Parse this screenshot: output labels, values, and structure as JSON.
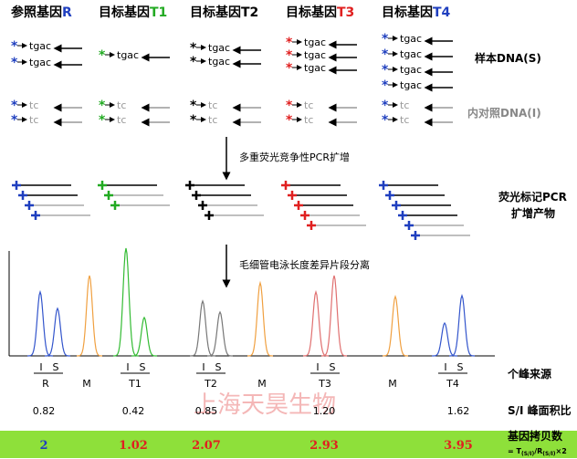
{
  "headers": [
    {
      "label": "参照基因",
      "gene": "R"
    },
    {
      "label": "目标基因",
      "gene": "T1"
    },
    {
      "label": "目标基因",
      "gene": "T2"
    },
    {
      "label": "目标基因",
      "gene": "T3"
    },
    {
      "label": "目标基因",
      "gene": "T4"
    }
  ],
  "sample_seq": "tgac",
  "control_seq": "tc",
  "sample_label": "样本DNA(S)",
  "control_label": "内对照DNA(I)",
  "step1": "多重荧光竞争性PCR扩增",
  "products_label": [
    "荧光标记PCR",
    "扩增产物"
  ],
  "step2": "毛细管电泳长度差异片段分离",
  "peak_labels": {
    "internal": "I",
    "sample": "S"
  },
  "lanes": [
    "R",
    "M",
    "T1",
    "T2",
    "M",
    "T3",
    "M",
    "T4"
  ],
  "lanes_label": "个峰来源",
  "ratios": [
    "0.82",
    "0.42",
    "0.85",
    "1.20",
    "1.62"
  ],
  "ratio_label": "S/I 峰面积比",
  "copy_numbers": [
    "2",
    "1.02",
    "2.07",
    "2.93",
    "3.95"
  ],
  "copy_label": "基因拷贝数",
  "formula": {
    "prefix": "= T",
    "sub1": "(S/I)",
    "mid": "/R",
    "sub2": "(S/I)",
    "suffix": "×2"
  },
  "watermark": "上海天昊生物"
}
